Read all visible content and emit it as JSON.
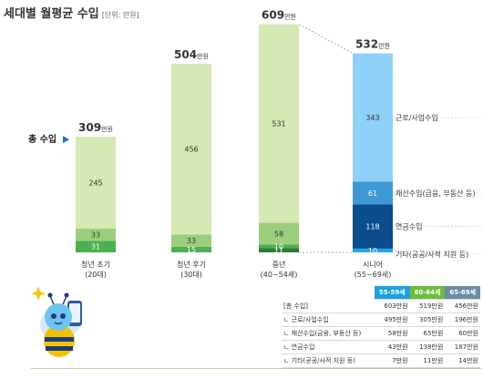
{
  "header": {
    "title": "세대별 월평균 수입",
    "unit": "[단위: 만원]"
  },
  "total_label": "총 수입",
  "colors": {
    "c1": "#d6e8b3",
    "c2": "#9ccf7c",
    "c3": "#4caf50",
    "c4": "#2e7d32",
    "s1": "#8fd0f6",
    "s2": "#3e9ad6",
    "s3": "#0a4c8c",
    "s4": "#29a3e6",
    "th1": "#1ba0e2",
    "th2": "#6cbf3a",
    "th3": "#6d8aa6"
  },
  "chart_data": {
    "type": "bar",
    "title": "세대별 월평균 수입",
    "unit": "[단위: 만원]",
    "categories": [
      {
        "name": "청년 초기",
        "sub": "(20대)"
      },
      {
        "name": "청년 후기",
        "sub": "(30대)"
      },
      {
        "name": "중년",
        "sub": "(40~54세)"
      },
      {
        "name": "시니어",
        "sub": "(55~69세)"
      }
    ],
    "totals": [
      309,
      504,
      609,
      532
    ],
    "total_suffix": "만원",
    "series": [
      {
        "name": "근로/사업수입",
        "values": [
          245,
          456,
          531,
          343
        ]
      },
      {
        "name": "재산수입(금융, 부동산 등)",
        "values": [
          33,
          33,
          58,
          61
        ]
      },
      {
        "name": "연금수입",
        "values": [
          31,
          15,
          10,
          118
        ]
      },
      {
        "name": "기타(공공/사적 지원 등)",
        "values": [
          0,
          0,
          11,
          10
        ]
      }
    ],
    "ylim": [
      0,
      609
    ]
  },
  "table": {
    "headers": [
      "55-59세",
      "60-64세",
      "65-69세"
    ],
    "rows": [
      {
        "label": "[총 수입]",
        "values": [
          "603만원",
          "519만원",
          "456만원"
        ]
      },
      {
        "label": "ㄴ 근로/사업수입",
        "values": [
          "495만원",
          "305만원",
          "196만원"
        ]
      },
      {
        "label": "ㄴ 재산수입(금융, 부동산 등)",
        "values": [
          "58만원",
          "65만원",
          "60만원"
        ]
      },
      {
        "label": "ㄴ 연금수입",
        "values": [
          "43만원",
          "138만원",
          "187만원"
        ]
      },
      {
        "label": "ㄴ 기타(공공/사적 지원 등)",
        "values": [
          "7만원",
          "11만원",
          "14만원"
        ]
      }
    ]
  }
}
